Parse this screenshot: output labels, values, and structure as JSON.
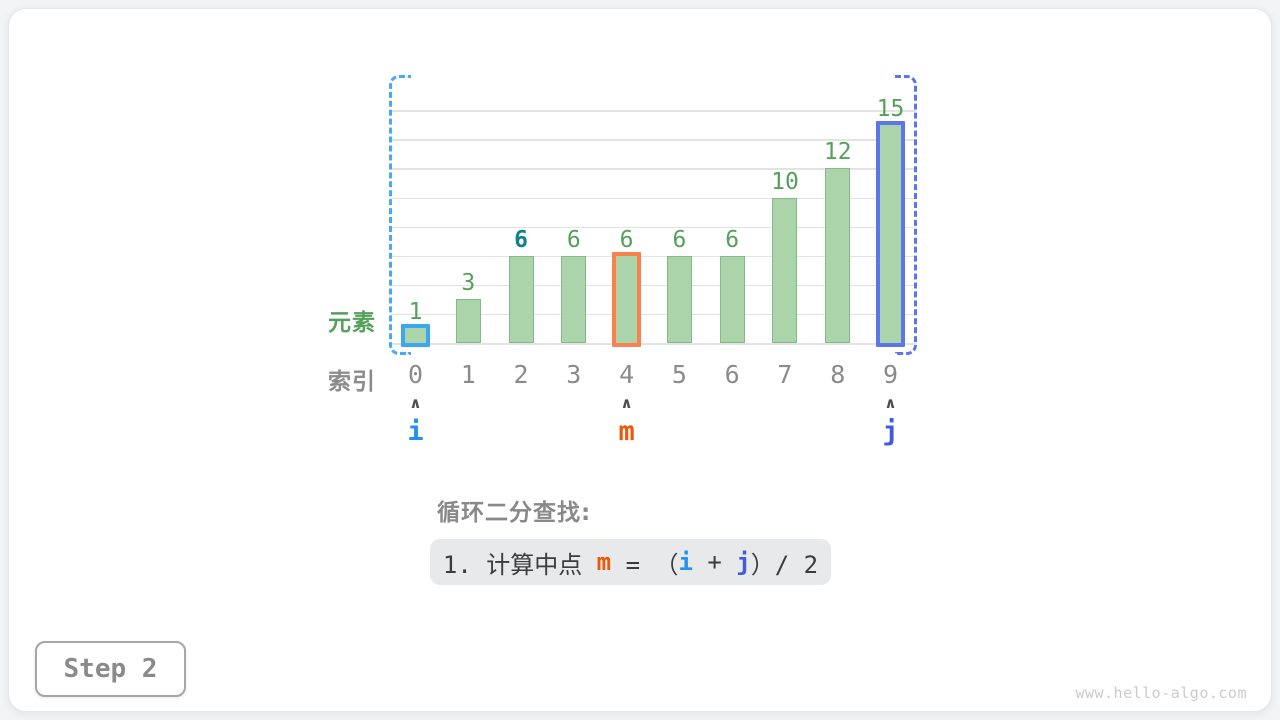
{
  "app": {
    "step_label": "Step 2",
    "watermark": "www.hello-algo.com"
  },
  "labels": {
    "elements_row": "元素",
    "indices_row": "索引",
    "section_title": "循环二分查找:"
  },
  "colors": {
    "bar_fill": "#abd4ab",
    "bar_border": "#82bb85",
    "value_green": "#57a05b",
    "target_teal": "#12818f",
    "gray_text": "#8b8b8b",
    "caret_gray": "#4e4e4e",
    "blue_outline": "#3ba6f1",
    "blue_text": "#2492ec",
    "orange_outline": "#f8824e",
    "orange_text": "#e8590c",
    "indigo_outline": "#5b76e8",
    "indigo_text": "#3f5ce0",
    "bracket_blue": "#4aa9f2",
    "bracket_indigo": "#5b76e8",
    "grid": "#e3e3e3",
    "formula_bg": "#e8e9eb",
    "formula_text": "#3c3c3c",
    "title_gray": "#898989",
    "step_gray": "#8a8a8a",
    "watermark_gray": "#cbcbcb"
  },
  "chart_data": {
    "type": "bar",
    "title": "",
    "xlabel": "索引",
    "ylabel": "元素",
    "categories": [
      "0",
      "1",
      "2",
      "3",
      "4",
      "5",
      "6",
      "7",
      "8",
      "9"
    ],
    "values": [
      1,
      3,
      6,
      6,
      6,
      6,
      6,
      10,
      12,
      15
    ],
    "ylim": [
      0,
      16
    ],
    "gridline_step": 2,
    "grid": "horizontal",
    "bars": [
      {
        "index": "0",
        "value": 1,
        "outline": "blue"
      },
      {
        "index": "1",
        "value": 3,
        "outline": null
      },
      {
        "index": "2",
        "value": 6,
        "outline": null,
        "value_label_style": "target"
      },
      {
        "index": "3",
        "value": 6,
        "outline": null
      },
      {
        "index": "4",
        "value": 6,
        "outline": "orange"
      },
      {
        "index": "5",
        "value": 6,
        "outline": null
      },
      {
        "index": "6",
        "value": 6,
        "outline": null
      },
      {
        "index": "7",
        "value": 10,
        "outline": null
      },
      {
        "index": "8",
        "value": 12,
        "outline": null
      },
      {
        "index": "9",
        "value": 15,
        "outline": "indigo"
      }
    ],
    "pointers": [
      {
        "name": "i",
        "index": 0,
        "style": "blue"
      },
      {
        "name": "m",
        "index": 4,
        "style": "orange"
      },
      {
        "name": "j",
        "index": 9,
        "style": "indigo"
      }
    ],
    "range_brackets": [
      {
        "side": "left",
        "style": "blue"
      },
      {
        "side": "right",
        "style": "indigo"
      }
    ]
  },
  "formula": {
    "segments": [
      {
        "text": "1. 计算中点 ",
        "style": "plain"
      },
      {
        "text": "m",
        "style": "orange"
      },
      {
        "text": " = （",
        "style": "plain"
      },
      {
        "text": "i",
        "style": "blue"
      },
      {
        "text": " + ",
        "style": "plain"
      },
      {
        "text": "j",
        "style": "indigo"
      },
      {
        "text": "）/ 2",
        "style": "plain"
      }
    ]
  }
}
